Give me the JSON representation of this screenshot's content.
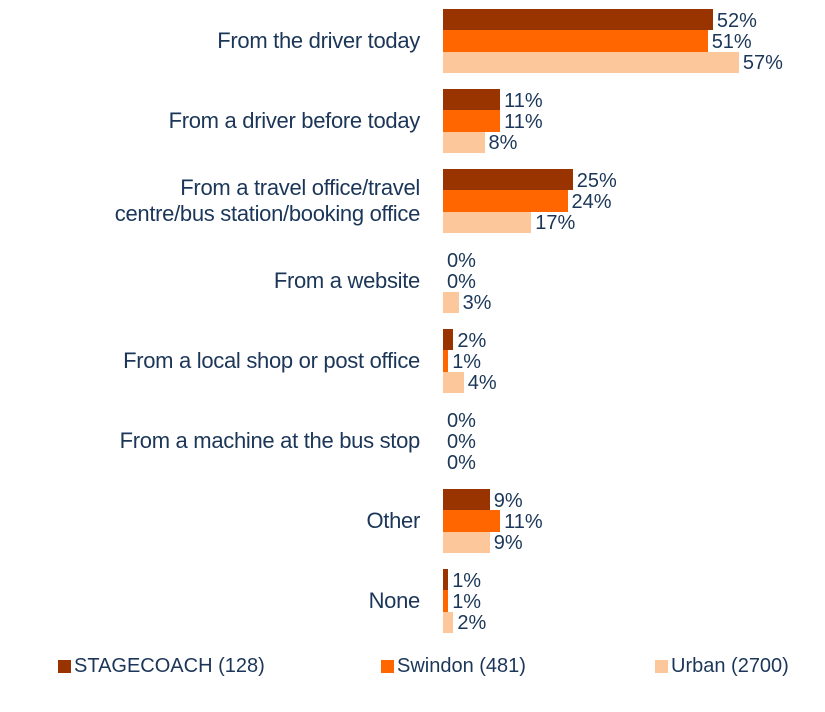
{
  "chart_data": {
    "type": "bar",
    "orientation": "horizontal",
    "categories": [
      "From the driver today",
      "From a driver before today",
      "From a travel office/travel\ncentre/bus station/booking office",
      "From a website",
      "From a local shop or post office",
      "From a machine at the bus stop",
      "Other",
      "None"
    ],
    "series": [
      {
        "name": "STAGECOACH (128)",
        "color": "#993300",
        "values": [
          52,
          11,
          25,
          0,
          2,
          0,
          9,
          1
        ],
        "value_labels": [
          "52%",
          "11%",
          "25%",
          "0%",
          "2%",
          "0%",
          "9%",
          "1%"
        ]
      },
      {
        "name": "Swindon (481)",
        "color": "#ff6600",
        "values": [
          51,
          11,
          24,
          0,
          1,
          0,
          11,
          1
        ],
        "value_labels": [
          "51%",
          "11%",
          "24%",
          "0%",
          "1%",
          "0%",
          "11%",
          "1%"
        ]
      },
      {
        "name": "Urban (2700)",
        "color": "#fcc89b",
        "values": [
          57,
          8,
          17,
          3,
          4,
          0,
          9,
          2
        ],
        "value_labels": [
          "57%",
          "8%",
          "17%",
          "3%",
          "4%",
          "0%",
          "9%",
          "2%"
        ]
      }
    ],
    "legend": "bottom"
  }
}
